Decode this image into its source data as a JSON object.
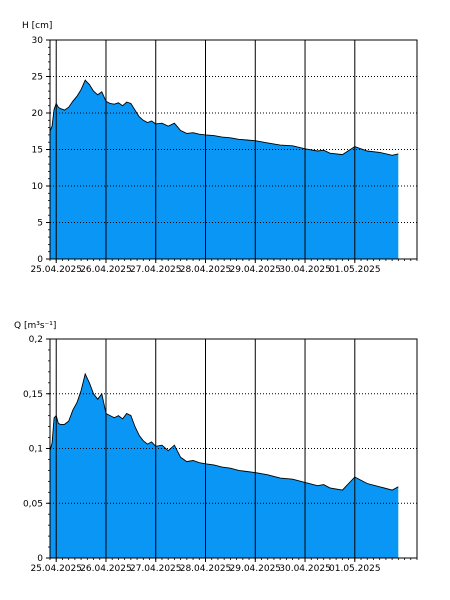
{
  "colors": {
    "fill": "#0A96F5",
    "outline": "#000000",
    "grid": "#000000",
    "background": "#ffffff"
  },
  "chart_data": [
    {
      "type": "area",
      "ylabel": "H [cm]",
      "ylim": [
        0,
        30
      ],
      "yticks": [
        {
          "value": 0,
          "label": "0"
        },
        {
          "value": 5,
          "label": "5"
        },
        {
          "value": 10,
          "label": "10"
        },
        {
          "value": 15,
          "label": "15"
        },
        {
          "value": 20,
          "label": "20"
        },
        {
          "value": 25,
          "label": "25"
        },
        {
          "value": 30,
          "label": "30"
        }
      ],
      "xlim": [
        "24.04.2025 21:00",
        "02.05.2025 06:00"
      ],
      "xticks": [
        "25.04.2025",
        "26.04.2025",
        "27.04.2025",
        "28.04.2025",
        "29.04.2025",
        "30.04.2025",
        "01.05.2025"
      ],
      "grid": true,
      "series": [
        {
          "x": [
            "24.04.2025 21:00",
            "24.04.2025 22:00",
            "24.04.2025 23:00",
            "25.04.2025 00:00",
            "25.04.2025 01:00",
            "25.04.2025 02:00",
            "25.04.2025 04:00",
            "25.04.2025 06:00",
            "25.04.2025 08:00",
            "25.04.2025 10:00",
            "25.04.2025 12:00",
            "25.04.2025 14:00",
            "25.04.2025 16:00",
            "25.04.2025 18:00",
            "25.04.2025 20:00",
            "25.04.2025 22:00",
            "26.04.2025 00:00",
            "26.04.2025 02:00",
            "26.04.2025 04:00",
            "26.04.2025 06:00",
            "26.04.2025 08:00",
            "26.04.2025 10:00",
            "26.04.2025 12:00",
            "26.04.2025 14:00",
            "26.04.2025 16:00",
            "26.04.2025 18:00",
            "26.04.2025 20:00",
            "26.04.2025 22:00",
            "27.04.2025 00:00",
            "27.04.2025 03:00",
            "27.04.2025 06:00",
            "27.04.2025 09:00",
            "27.04.2025 12:00",
            "27.04.2025 15:00",
            "27.04.2025 18:00",
            "27.04.2025 21:00",
            "28.04.2025 00:00",
            "28.04.2025 04:00",
            "28.04.2025 08:00",
            "28.04.2025 12:00",
            "28.04.2025 16:00",
            "28.04.2025 20:00",
            "29.04.2025 00:00",
            "29.04.2025 06:00",
            "29.04.2025 12:00",
            "29.04.2025 18:00",
            "30.04.2025 00:00",
            "30.04.2025 06:00",
            "30.04.2025 09:00",
            "30.04.2025 12:00",
            "30.04.2025 18:00",
            "01.05.2025 00:00",
            "01.05.2025 06:00",
            "01.05.2025 12:00",
            "01.05.2025 18:00",
            "01.05.2025 21:00"
          ],
          "y": [
            17.5,
            18.2,
            20.5,
            21.3,
            20.8,
            20.6,
            20.4,
            20.8,
            21.6,
            22.3,
            23.2,
            24.5,
            23.9,
            23.0,
            22.5,
            22.9,
            21.6,
            21.3,
            21.2,
            21.4,
            21.0,
            21.5,
            21.3,
            20.4,
            19.5,
            19.0,
            18.7,
            18.9,
            18.5,
            18.6,
            18.2,
            18.6,
            17.6,
            17.2,
            17.3,
            17.1,
            17.0,
            16.9,
            16.7,
            16.6,
            16.4,
            16.3,
            16.2,
            15.9,
            15.6,
            15.5,
            15.1,
            14.8,
            14.9,
            14.5,
            14.3,
            15.4,
            14.8,
            14.6,
            14.2,
            14.4
          ]
        }
      ]
    },
    {
      "type": "area",
      "ylabel": "Q [m³s⁻¹]",
      "ylim": [
        0,
        0.2
      ],
      "yticks": [
        {
          "value": 0,
          "label": "0"
        },
        {
          "value": 0.05,
          "label": "0,05"
        },
        {
          "value": 0.1,
          "label": "0,1"
        },
        {
          "value": 0.15,
          "label": "0,15"
        },
        {
          "value": 0.2,
          "label": "0,2"
        }
      ],
      "xlim": [
        "24.04.2025 21:00",
        "02.05.2025 06:00"
      ],
      "xticks": [
        "25.04.2025",
        "26.04.2025",
        "27.04.2025",
        "28.04.2025",
        "29.04.2025",
        "30.04.2025",
        "01.05.2025"
      ],
      "grid": true,
      "series": [
        {
          "x": [
            "24.04.2025 21:00",
            "24.04.2025 22:00",
            "24.04.2025 23:00",
            "25.04.2025 00:00",
            "25.04.2025 01:00",
            "25.04.2025 02:00",
            "25.04.2025 04:00",
            "25.04.2025 06:00",
            "25.04.2025 08:00",
            "25.04.2025 10:00",
            "25.04.2025 12:00",
            "25.04.2025 14:00",
            "25.04.2025 16:00",
            "25.04.2025 18:00",
            "25.04.2025 20:00",
            "25.04.2025 22:00",
            "26.04.2025 00:00",
            "26.04.2025 02:00",
            "26.04.2025 04:00",
            "26.04.2025 06:00",
            "26.04.2025 08:00",
            "26.04.2025 10:00",
            "26.04.2025 12:00",
            "26.04.2025 14:00",
            "26.04.2025 16:00",
            "26.04.2025 18:00",
            "26.04.2025 20:00",
            "26.04.2025 22:00",
            "27.04.2025 00:00",
            "27.04.2025 03:00",
            "27.04.2025 06:00",
            "27.04.2025 09:00",
            "27.04.2025 12:00",
            "27.04.2025 15:00",
            "27.04.2025 18:00",
            "27.04.2025 21:00",
            "28.04.2025 00:00",
            "28.04.2025 04:00",
            "28.04.2025 08:00",
            "28.04.2025 12:00",
            "28.04.2025 16:00",
            "28.04.2025 20:00",
            "29.04.2025 00:00",
            "29.04.2025 06:00",
            "29.04.2025 12:00",
            "29.04.2025 18:00",
            "30.04.2025 00:00",
            "30.04.2025 06:00",
            "30.04.2025 09:00",
            "30.04.2025 12:00",
            "30.04.2025 18:00",
            "01.05.2025 00:00",
            "01.05.2025 06:00",
            "01.05.2025 12:00",
            "01.05.2025 18:00",
            "01.05.2025 21:00"
          ],
          "y": [
            0.098,
            0.105,
            0.128,
            0.13,
            0.123,
            0.122,
            0.122,
            0.125,
            0.135,
            0.142,
            0.153,
            0.168,
            0.16,
            0.15,
            0.145,
            0.15,
            0.132,
            0.13,
            0.128,
            0.13,
            0.127,
            0.132,
            0.13,
            0.12,
            0.112,
            0.107,
            0.104,
            0.106,
            0.102,
            0.103,
            0.098,
            0.103,
            0.092,
            0.088,
            0.089,
            0.087,
            0.086,
            0.085,
            0.083,
            0.082,
            0.08,
            0.079,
            0.078,
            0.076,
            0.073,
            0.072,
            0.069,
            0.066,
            0.067,
            0.064,
            0.062,
            0.074,
            0.068,
            0.065,
            0.062,
            0.065
          ]
        }
      ]
    }
  ]
}
